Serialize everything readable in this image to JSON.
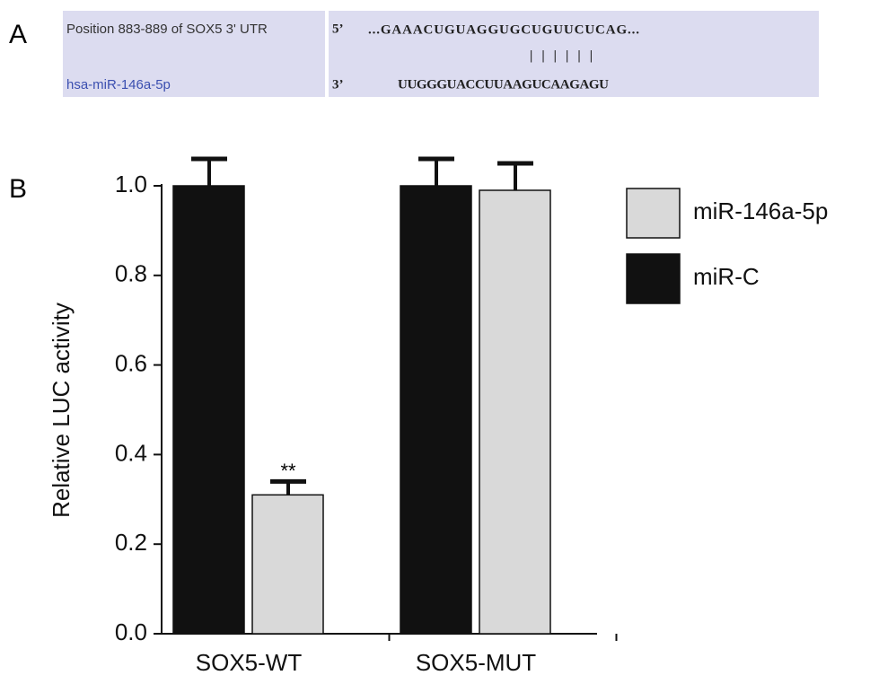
{
  "panel_a": {
    "label": "A",
    "target_label": "Position 883-889 of SOX5 3' UTR",
    "mirna_label": "hsa-miR-146a-5p",
    "target_end": "5’",
    "mirna_end": "3’",
    "target_seq": "...GAAACUGUAGGUGCUGUUCUCAG...",
    "pairing": "||||||",
    "mirna_seq": "UUGGGUACCUUAAGUCAAGAGU"
  },
  "chart_data": {
    "type": "bar",
    "panel_label": "B",
    "y_label": "Relative LUC activity",
    "categories": [
      "SOX5-WT",
      "SOX5-MUT"
    ],
    "series": [
      {
        "name": "miR-146a-5p",
        "color": "#d9d9d9",
        "values": [
          0.31,
          0.99
        ],
        "errors": [
          0.03,
          0.06
        ]
      },
      {
        "name": "miR-C",
        "color": "#111111",
        "values": [
          1.0,
          1.0
        ],
        "errors": [
          0.06,
          0.06
        ]
      }
    ],
    "annotation": "**",
    "ylim": [
      0,
      1
    ],
    "yticks": [
      {
        "value": 0,
        "label": "0.0"
      },
      0.2,
      0.4,
      0.6,
      0.8,
      {
        "value": 1,
        "label": "1.0"
      }
    ],
    "legend": "right"
  }
}
